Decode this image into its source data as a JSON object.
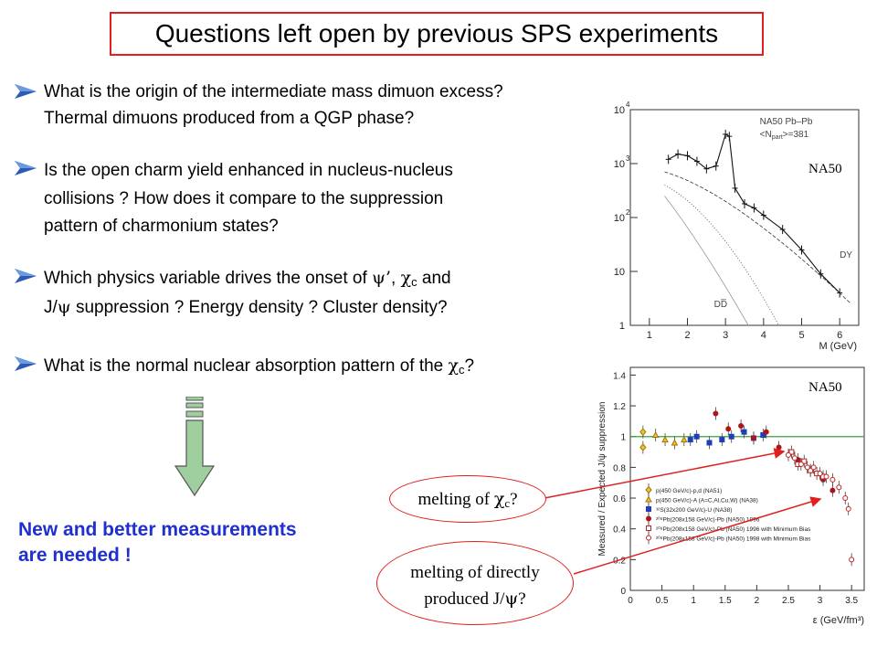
{
  "title": "Questions left open by previous SPS experiments",
  "bullets": [
    {
      "lines": [
        "What is the origin of the intermediate mass dimuon excess?",
        "Thermal dimuons produced from a QGP phase?"
      ]
    },
    {
      "lines": [
        "Is the open charm yield enhanced in nucleus-nucleus",
        "collisions ?  How does it compare to the suppression",
        "pattern of charmonium states?"
      ]
    },
    {
      "line1_pre": "Which physics variable drives the onset of ",
      "psi": "ψ",
      "prime": "’",
      "chi": "χ",
      "c_sub": "c",
      "line1_post": " and",
      "line2_pre": "J/",
      "line2_post": " suppression ?  Energy density ?  Cluster density?"
    },
    {
      "pre": "What is the normal nuclear absorption pattern of the ",
      "chi": "χ",
      "c_sub": "c",
      "post": "?"
    }
  ],
  "conclusion": [
    "New and better measurements",
    "are needed !"
  ],
  "bubble1": {
    "pre": "melting of ",
    "chi": "χ",
    "c_sub": "c",
    "post": "?"
  },
  "bubble2": {
    "line1": "melting of directly",
    "line2_pre": "produced J/",
    "psi": "ψ",
    "line2_post": "?"
  },
  "plot_top": {
    "tag": "NA50",
    "legend1": "NA50  Pb–Pb",
    "legend2": "<N",
    "legend2_sub": "part",
    "legend2_post": ">=381",
    "curve_label_dy": "DY",
    "curve_label_dd": "DD̅",
    "xlabel": "M (GeV)",
    "x_ticks": [
      "1",
      "2",
      "3",
      "4",
      "5",
      "6"
    ],
    "y_ticks": [
      "10",
      "10",
      "10",
      "10",
      "1"
    ],
    "y_exps": [
      "4",
      "3",
      "2",
      "",
      ""
    ]
  },
  "plot_bottom": {
    "tag": "NA50",
    "ylabel": "Measured / Expected J/ψ suppression",
    "xlabel": "ε  (GeV/fm³)",
    "x_ticks": [
      "0",
      "0.5",
      "1",
      "1.5",
      "2",
      "2.5",
      "3",
      "3.5"
    ],
    "y_ticks": [
      "1.4",
      "1.2",
      "1",
      "0.8",
      "0.6",
      "0.4",
      "0.2",
      "0"
    ],
    "legend": [
      "p(450 GeV/c)-p,d (NA51)",
      "p(450 GeV/c)-A (A=C,Al,Cu,W) (NA38)",
      "³²S(32x200 GeV/c)-U (NA38)",
      "²⁰⁸Pb(208x158 GeV/c)-Pb (NA50) 1996",
      "²⁰⁸Pb(208x158 GeV/c)-Pb (NA50) 1996 with Minimum Bias",
      "²⁰⁸Pb(208x158 GeV/c)-Pb (NA50) 1998 with Minimum Bias"
    ]
  },
  "colors": {
    "title_border": "#e02020",
    "conclusion": "#1f2fd0",
    "bullet": "#2b5bb5",
    "arrow_fill": "#9fcf9f"
  },
  "chart_data": [
    {
      "type": "line",
      "xlabel": "M (GeV)",
      "ylabel": "",
      "x_range": [
        0.5,
        6.5
      ],
      "y_log": true,
      "ylim": [
        1,
        10000
      ],
      "series": [
        {
          "name": "",
          "x": [
            1.5,
            1.75,
            2.0,
            2.25,
            2.5,
            2.75,
            3.0,
            3.1,
            3.25,
            3.5,
            3.75,
            4.0,
            4.5,
            5.0,
            5.5,
            6.0
          ],
          "values": [
            1200,
            1500,
            1400,
            1100,
            800,
            900,
            3500,
            3200,
            350,
            180,
            150,
            110,
            60,
            25,
            9,
            4
          ]
        }
      ]
    },
    {
      "type": "scatter",
      "xlabel": "ε  (GeV/fm³)",
      "ylabel": "Measured / Expected J/ψ suppression",
      "x_range": [
        0,
        3.7
      ],
      "ylim": [
        0,
        1.45
      ],
      "reference_line": 1.0,
      "series": [
        {
          "name": "NA51 p-p,d",
          "x": [
            0.2,
            0.2
          ],
          "y": [
            0.93,
            1.03
          ]
        },
        {
          "name": "NA38 p-A",
          "x": [
            0.4,
            0.55,
            0.7,
            0.85
          ],
          "y": [
            1.01,
            0.98,
            0.96,
            0.98
          ]
        },
        {
          "name": "NA38 S-U",
          "x": [
            0.95,
            1.05,
            1.25,
            1.45,
            1.6,
            1.8,
            1.95,
            2.1
          ],
          "y": [
            0.98,
            1.0,
            0.96,
            0.98,
            1.0,
            1.03,
            0.99,
            1.01
          ]
        },
        {
          "name": "NA50 1996",
          "x": [
            1.35,
            1.55,
            1.75,
            1.95,
            2.15,
            2.35,
            2.65,
            2.85,
            3.05,
            3.2
          ],
          "y": [
            1.15,
            1.05,
            1.07,
            0.99,
            1.03,
            0.93,
            0.85,
            0.78,
            0.72,
            0.65
          ]
        },
        {
          "name": "NA50 1996 Min Bias",
          "x": [
            2.55,
            2.65,
            2.75,
            2.85,
            2.95,
            3.05
          ],
          "y": [
            0.9,
            0.82,
            0.84,
            0.78,
            0.76,
            0.74
          ]
        },
        {
          "name": "NA50 1998 Min Bias",
          "x": [
            2.5,
            2.6,
            2.7,
            2.8,
            2.9,
            3.0,
            3.1,
            3.2,
            3.3,
            3.4,
            3.45,
            3.5
          ],
          "y": [
            0.88,
            0.86,
            0.82,
            0.8,
            0.8,
            0.76,
            0.74,
            0.72,
            0.67,
            0.6,
            0.53,
            0.2
          ]
        }
      ]
    }
  ]
}
